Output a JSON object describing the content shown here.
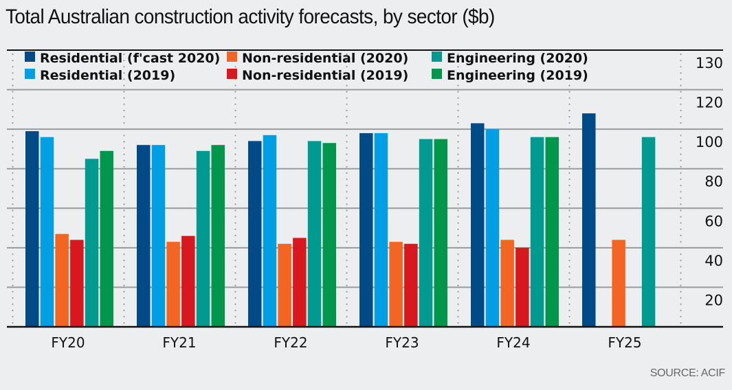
{
  "title": "Total Australian construction activity forecasts, by sector ($b)",
  "source": "SOURCE: ACIF",
  "colors": {
    "background": "#edeef0",
    "Residential (f'cast 2020)": "#004b87",
    "Residential (2019)": "#009fe3",
    "Non-residential (2020)": "#f26522",
    "Non-residential (2019)": "#d7191f",
    "Engineering (2020)": "#009a91",
    "Engineering (2019)": "#00964b"
  },
  "chart_data": {
    "type": "bar",
    "title": "Total Australian construction activity forecasts, by sector ($b)",
    "xlabel": "",
    "ylabel": "$b",
    "ylim": [
      0,
      130
    ],
    "y_ticks": [
      130,
      120,
      100,
      80,
      60,
      40,
      20
    ],
    "y_axis_side": "right",
    "grid": true,
    "legend_position": "top",
    "categories": [
      "FY20",
      "FY21",
      "FY22",
      "FY23",
      "FY24",
      "FY25"
    ],
    "series": [
      {
        "name": "Residential (f'cast 2020)",
        "values": [
          99,
          92,
          94,
          98,
          103,
          108
        ]
      },
      {
        "name": "Residential (2019)",
        "values": [
          96,
          92,
          97,
          98,
          100,
          null
        ]
      },
      {
        "name": "Non-residential (2020)",
        "values": [
          47,
          43,
          42,
          43,
          44,
          44
        ]
      },
      {
        "name": "Non-residential (2019)",
        "values": [
          44,
          46,
          45,
          42,
          40,
          null
        ]
      },
      {
        "name": "Engineering (2020)",
        "values": [
          85,
          89,
          94,
          95,
          96,
          96
        ]
      },
      {
        "name": "Engineering (2019)",
        "values": [
          89,
          92,
          93,
          95,
          96,
          null
        ]
      }
    ],
    "legend": [
      "Residential (f'cast 2020)",
      "Non-residential (2020)",
      "Engineering (2020)",
      "Residential (2019)",
      "Non-residential (2019)",
      "Engineering (2019)"
    ],
    "source": "SOURCE: ACIF"
  }
}
